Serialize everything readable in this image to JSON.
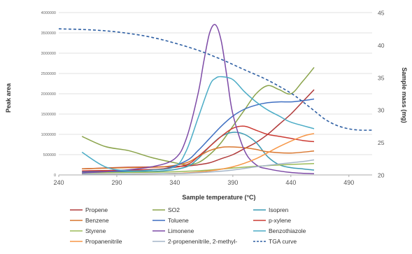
{
  "chart_data": {
    "type": "line",
    "title": "",
    "xlabel": "Sample temperature (°C)",
    "ylabel": "Peak area",
    "y2label": "Sample mass (mg)",
    "xlim": [
      240,
      510
    ],
    "ylim": [
      0,
      4000000
    ],
    "y2lim": [
      20,
      45
    ],
    "xticks": [
      "240",
      "290",
      "340",
      "390",
      "440",
      "490"
    ],
    "xtick_values": [
      240,
      290,
      340,
      390,
      440,
      490
    ],
    "yticks": [
      "0",
      "500000",
      "1000000",
      "1500000",
      "2000000",
      "2500000",
      "3000000",
      "3500000",
      "4000000"
    ],
    "ytick_values": [
      0,
      500000,
      1000000,
      1500000,
      2000000,
      2500000,
      3000000,
      3500000,
      4000000
    ],
    "y2ticks": [
      "20",
      "25",
      "30",
      "35",
      "40",
      "45"
    ],
    "y2tick_values": [
      20,
      25,
      30,
      35,
      40,
      45
    ],
    "grid": "horizontal",
    "legend_position": "bottom",
    "series": [
      {
        "name": "Propene",
        "color": "#b03a3a",
        "axis": "left",
        "x": [
          260,
          300,
          330,
          350,
          360,
          370,
          380,
          390,
          400,
          410,
          420,
          430,
          440,
          450,
          460
        ],
        "y": [
          150000,
          190000,
          200000,
          220000,
          250000,
          300000,
          400000,
          500000,
          650000,
          800000,
          1000000,
          1250000,
          1500000,
          1800000,
          2100000
        ]
      },
      {
        "name": "SO2",
        "color": "#8aa34a",
        "axis": "left",
        "x": [
          260,
          280,
          300,
          320,
          340,
          350,
          360,
          370,
          380,
          390,
          400,
          410,
          420,
          430,
          440,
          450,
          460
        ],
        "y": [
          950000,
          700000,
          600000,
          430000,
          300000,
          250000,
          300000,
          500000,
          800000,
          1200000,
          1600000,
          2000000,
          2200000,
          2100000,
          2000000,
          2300000,
          2650000
        ]
      },
      {
        "name": "Isopren",
        "color": "#3a9ab3",
        "axis": "left",
        "x": [
          260,
          300,
          330,
          350,
          360,
          370,
          380,
          390,
          400,
          410,
          420,
          430,
          440,
          450,
          460
        ],
        "y": [
          50000,
          80000,
          100000,
          200000,
          400000,
          700000,
          950000,
          1050000,
          1000000,
          800000,
          450000,
          250000,
          180000,
          150000,
          120000
        ]
      },
      {
        "name": "Benzene",
        "color": "#d9772f",
        "axis": "left",
        "x": [
          260,
          300,
          330,
          350,
          360,
          370,
          380,
          390,
          400,
          410,
          420,
          440,
          460
        ],
        "y": [
          150000,
          180000,
          200000,
          300000,
          450000,
          600000,
          680000,
          690000,
          670000,
          630000,
          570000,
          540000,
          590000
        ]
      },
      {
        "name": "Toluene",
        "color": "#3f6fc2",
        "axis": "left",
        "x": [
          260,
          300,
          330,
          350,
          360,
          370,
          380,
          390,
          400,
          410,
          420,
          430,
          440,
          450,
          460
        ],
        "y": [
          80000,
          100000,
          150000,
          350000,
          600000,
          900000,
          1200000,
          1450000,
          1620000,
          1720000,
          1780000,
          1800000,
          1800000,
          1830000,
          1870000
        ]
      },
      {
        "name": "p-xylene",
        "color": "#cc3b33",
        "axis": "left",
        "x": [
          260,
          300,
          330,
          350,
          360,
          370,
          380,
          390,
          400,
          410,
          420,
          430,
          440,
          450,
          460
        ],
        "y": [
          100000,
          120000,
          150000,
          250000,
          450000,
          700000,
          950000,
          1150000,
          1200000,
          1100000,
          1000000,
          950000,
          900000,
          850000,
          820000
        ]
      },
      {
        "name": "Styrene",
        "color": "#9bbb59",
        "axis": "left",
        "x": [
          260,
          300,
          330,
          350,
          370,
          390,
          420,
          460
        ],
        "y": [
          50000,
          60000,
          70000,
          90000,
          120000,
          170000,
          230000,
          280000
        ]
      },
      {
        "name": "Limonene",
        "color": "#7d4aa6",
        "axis": "left",
        "x": [
          260,
          290,
          320,
          340,
          350,
          360,
          365,
          370,
          375,
          380,
          385,
          390,
          400,
          410,
          420,
          440,
          460
        ],
        "y": [
          50000,
          100000,
          200000,
          400000,
          900000,
          2000000,
          2800000,
          3500000,
          3700000,
          3300000,
          2400000,
          1500000,
          600000,
          250000,
          150000,
          60000,
          30000
        ]
      },
      {
        "name": "Benzothiazole",
        "color": "#4bacc6",
        "axis": "left",
        "x": [
          260,
          280,
          300,
          320,
          340,
          350,
          360,
          370,
          375,
          380,
          390,
          400,
          410,
          420,
          430,
          440,
          460
        ],
        "y": [
          560000,
          200000,
          100000,
          120000,
          200000,
          600000,
          1400000,
          2200000,
          2380000,
          2420000,
          2350000,
          2050000,
          1800000,
          1600000,
          1450000,
          1300000,
          1140000
        ]
      },
      {
        "name": "Propanenitrile",
        "color": "#f79646",
        "axis": "left",
        "x": [
          260,
          300,
          330,
          350,
          370,
          390,
          410,
          430,
          450,
          460
        ],
        "y": [
          20000,
          20000,
          30000,
          50000,
          100000,
          200000,
          400000,
          700000,
          950000,
          1020000
        ]
      },
      {
        "name": "2-propenenitrile, 2-methyl-",
        "color": "#a5b6c9",
        "axis": "left",
        "x": [
          260,
          300,
          330,
          350,
          370,
          390,
          410,
          430,
          450,
          460
        ],
        "y": [
          20000,
          20000,
          30000,
          40000,
          70000,
          120000,
          200000,
          270000,
          330000,
          370000
        ]
      },
      {
        "name": "TGA curve",
        "color": "#2e5fa3",
        "axis": "right",
        "dashed": true,
        "x": [
          240,
          260,
          280,
          300,
          320,
          340,
          360,
          380,
          400,
          420,
          440,
          450,
          460,
          470,
          480,
          490,
          500,
          510
        ],
        "y": [
          42.5,
          42.4,
          42.2,
          41.8,
          41.2,
          40.3,
          39.2,
          37.8,
          36.2,
          34.6,
          32.6,
          31.3,
          29.9,
          28.5,
          27.6,
          27.1,
          26.9,
          26.9
        ]
      }
    ]
  }
}
